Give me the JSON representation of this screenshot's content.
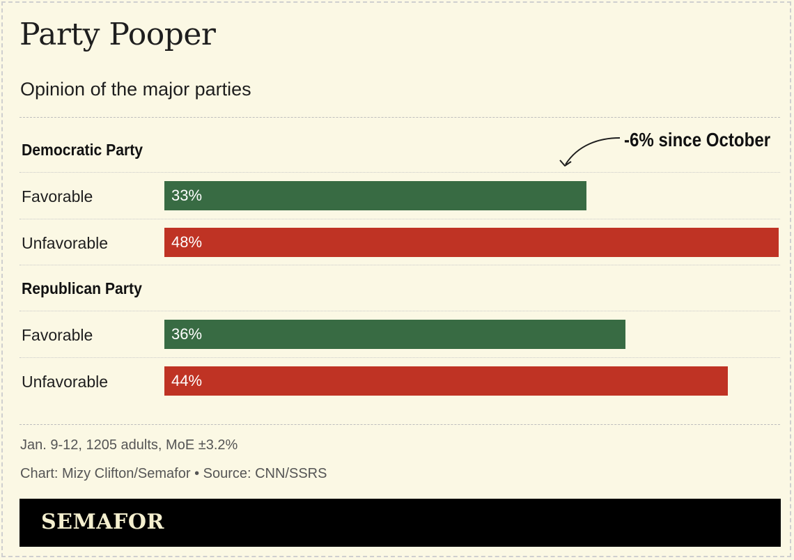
{
  "chart_data": {
    "type": "bar",
    "orientation": "horizontal",
    "title": "Party Pooper",
    "subtitle": "Opinion of the major parties",
    "xlim": [
      0,
      48
    ],
    "groups": [
      {
        "name": "Democratic Party",
        "bars": [
          {
            "label": "Favorable",
            "value": 33,
            "display": "33%",
            "color": "#386b43"
          },
          {
            "label": "Unfavorable",
            "value": 48,
            "display": "48%",
            "color": "#bf3324"
          }
        ]
      },
      {
        "name": "Republican Party",
        "bars": [
          {
            "label": "Favorable",
            "value": 36,
            "display": "36%",
            "color": "#386b43"
          },
          {
            "label": "Unfavorable",
            "value": 44,
            "display": "44%",
            "color": "#bf3324"
          }
        ]
      }
    ],
    "annotation": "-6% since October",
    "note": "Jan. 9-12, 1205 adults, MoE ±3.2%",
    "credit": "Chart: Mizy Clifton/Semafor • Source: CNN/SSRS"
  },
  "brand": "SEMAFOR",
  "colors": {
    "background": "#fbf8e4",
    "favorable": "#386b43",
    "unfavorable": "#bf3324",
    "brand_bar": "#000000",
    "brand_text": "#f4efcf"
  }
}
